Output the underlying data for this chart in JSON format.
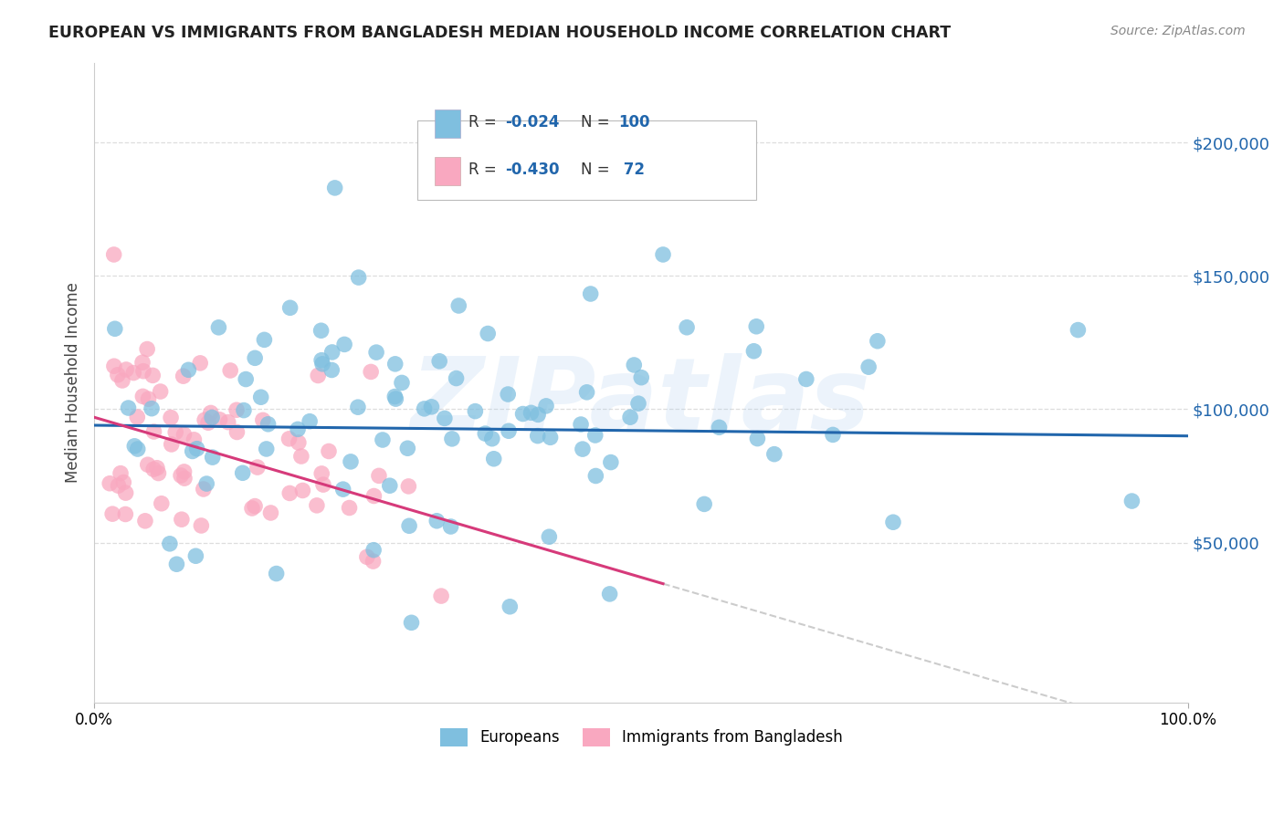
{
  "title": "EUROPEAN VS IMMIGRANTS FROM BANGLADESH MEDIAN HOUSEHOLD INCOME CORRELATION CHART",
  "source": "Source: ZipAtlas.com",
  "ylabel": "Median Household Income",
  "watermark": "ZIPatlas",
  "legend_label1": "Europeans",
  "legend_label2": "Immigrants from Bangladesh",
  "blue_color": "#7fbfdf",
  "pink_color": "#f9a8c0",
  "blue_line_color": "#2166ac",
  "pink_line_color": "#d63a7a",
  "dashed_line_color": "#cccccc",
  "xlim": [
    0.0,
    1.0
  ],
  "ylim": [
    -10000,
    230000
  ],
  "yticks": [
    50000,
    100000,
    150000,
    200000
  ],
  "ytick_labels": [
    "$50,000",
    "$100,000",
    "$150,000",
    "$200,000"
  ],
  "blue_r": -0.024,
  "blue_n": 100,
  "pink_r": -0.43,
  "pink_n": 72,
  "blue_seed": 42,
  "pink_seed": 99,
  "title_color": "#222222",
  "source_color": "#888888",
  "tick_color": "#2166ac"
}
